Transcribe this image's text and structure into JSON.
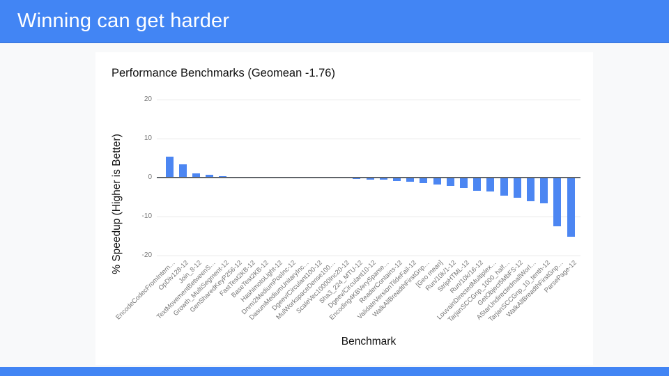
{
  "slide": {
    "title": "Winning can get harder"
  },
  "theme": {
    "accent_color": "#4285F4",
    "background_color": "#F8F9FA",
    "card_color": "#FFFFFF",
    "grid_color": "#E8E8E8",
    "zero_axis_color": "#5F6368",
    "tick_label_color": "#757575",
    "bar_color": "#4C86F2"
  },
  "chart_data": {
    "type": "bar",
    "title": "Performance Benchmarks (Geomean -1.76)",
    "xlabel": "Benchmark",
    "ylabel": "% Speedup (Higher is Better)",
    "ylim": [
      -20,
      20
    ],
    "y_ticks": [
      20,
      10,
      0,
      -10,
      -20
    ],
    "grid": true,
    "legend": false,
    "categories": [
      "EncodeCodecFromIntern…",
      "OpDiv128-12",
      "Join_8-12",
      "TextMovementBetweenS…",
      "Growth_MultiSegment-12",
      "GenSharedKeyP256-12",
      "FastTest2KB-12",
      "BaseTest2KB-12",
      "HashimotoLight-12",
      "Dnrm2MediumPosInc-12",
      "DasumMediumUnitaryInc…",
      "Dgeev/Circulant100-12",
      "MulWorkspaceDense100…",
      "ScaleVec10000Inc20-12",
      "Sha3_224_MTU-12",
      "Dgeev/Circulant10-12",
      "Encoding4KBVerySparse…",
      "ReaderContains-12",
      "ValidateVersionTildeFail-12",
      "WalkAllBreadthFirstGnp…",
      "[Geo mean]",
      "Run/10k/1-12",
      "StripHTML-12",
      "Run/10k/16-12",
      "LouvainDirectedMultiplex…",
      "TarjanSCCGnp_1000_half…",
      "GetObject5MbFS-12",
      "AStarUndirectedmallWorl…",
      "TarjanSCCGnp_10_tenth-12",
      "WalkAllBreadthFirstGnp…",
      "ParsePage-12"
    ],
    "values": [
      5.3,
      3.4,
      1.0,
      0.7,
      0.4,
      0.2,
      0.05,
      0.02,
      0.0,
      -0.02,
      -0.05,
      -0.1,
      -0.12,
      -0.2,
      -0.4,
      -0.5,
      -0.6,
      -0.9,
      -1.1,
      -1.35,
      -1.76,
      -2.2,
      -2.65,
      -3.4,
      -3.5,
      -4.6,
      -5.1,
      -6.1,
      -6.6,
      -12.5,
      -15.2
    ]
  }
}
